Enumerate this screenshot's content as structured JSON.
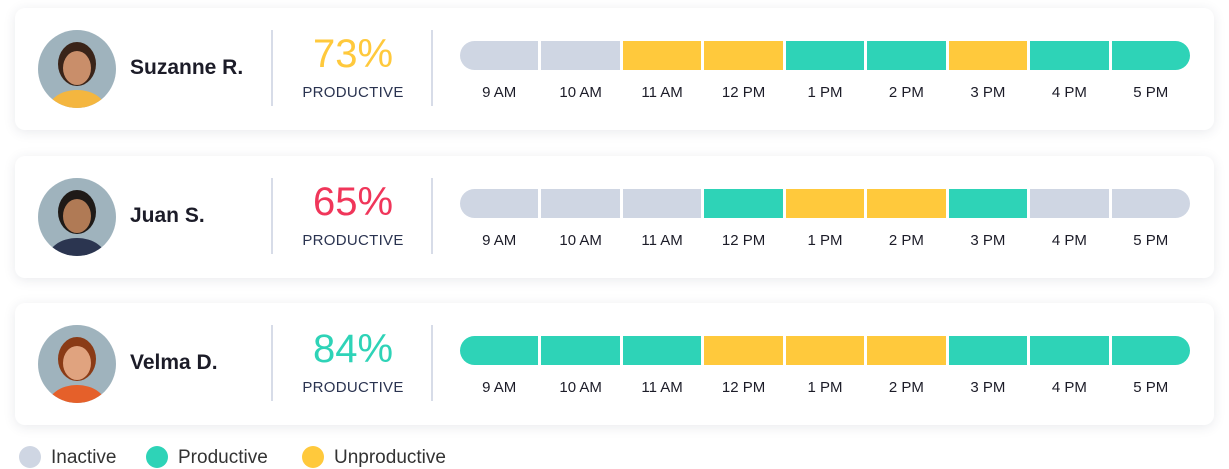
{
  "employees": [
    {
      "name": "Suzanne R.",
      "score": "73%",
      "score_color": "#FFC93C",
      "score_label": "PRODUCTIVE",
      "statuses": [
        "inactive",
        "inactive",
        "unproductive",
        "unproductive",
        "productive",
        "productive",
        "unproductive",
        "productive",
        "productive"
      ]
    },
    {
      "name": "Juan S.",
      "score": "65%",
      "score_color": "#F0365A",
      "score_label": "PRODUCTIVE",
      "statuses": [
        "inactive",
        "inactive",
        "inactive",
        "productive",
        "unproductive",
        "unproductive",
        "productive",
        "inactive",
        "inactive"
      ]
    },
    {
      "name": "Velma D.",
      "score": "84%",
      "score_color": "#2ED3B7",
      "score_label": "PRODUCTIVE",
      "statuses": [
        "productive",
        "productive",
        "productive",
        "unproductive",
        "unproductive",
        "unproductive",
        "productive",
        "productive",
        "productive"
      ]
    }
  ],
  "hours": [
    "9 AM",
    "10 AM",
    "11 AM",
    "12 PM",
    "1 PM",
    "2 PM",
    "3 PM",
    "4 PM",
    "5 PM"
  ],
  "legend": [
    {
      "key": "inactive",
      "label": "Inactive",
      "color": "#CFD6E3"
    },
    {
      "key": "productive",
      "label": "Productive",
      "color": "#2ED3B7"
    },
    {
      "key": "unproductive",
      "label": "Unproductive",
      "color": "#FFC93C"
    }
  ]
}
